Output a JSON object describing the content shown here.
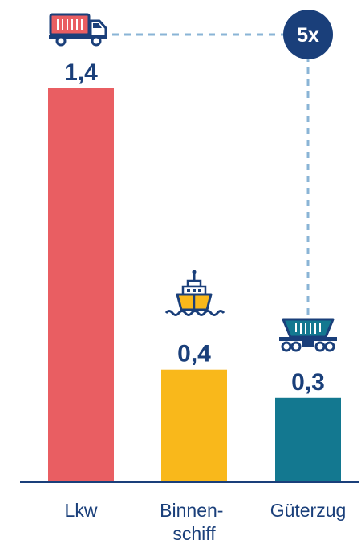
{
  "chart_data": {
    "type": "bar",
    "categories": [
      "Lkw",
      "Binnenschiff",
      "Güterzug"
    ],
    "category_lines": [
      [
        "Lkw"
      ],
      [
        "Binnen-",
        "schiff"
      ],
      [
        "Güterzug"
      ]
    ],
    "values": [
      1.4,
      0.4,
      0.3
    ],
    "value_labels": [
      "1,4",
      "0,4",
      "0,3"
    ],
    "ylim": [
      0,
      1.4
    ],
    "grid": false,
    "colors": [
      "#e95e62",
      "#f9b81b",
      "#137890"
    ],
    "icons": [
      "truck-icon",
      "ship-icon",
      "freight-wagon-icon"
    ],
    "annotation": {
      "text": "5x",
      "from": "Lkw",
      "to": "Güterzug",
      "color": "#1a3f7a"
    },
    "axis_color": "#1a3f7a",
    "connector_color": "#8ab4d6"
  }
}
